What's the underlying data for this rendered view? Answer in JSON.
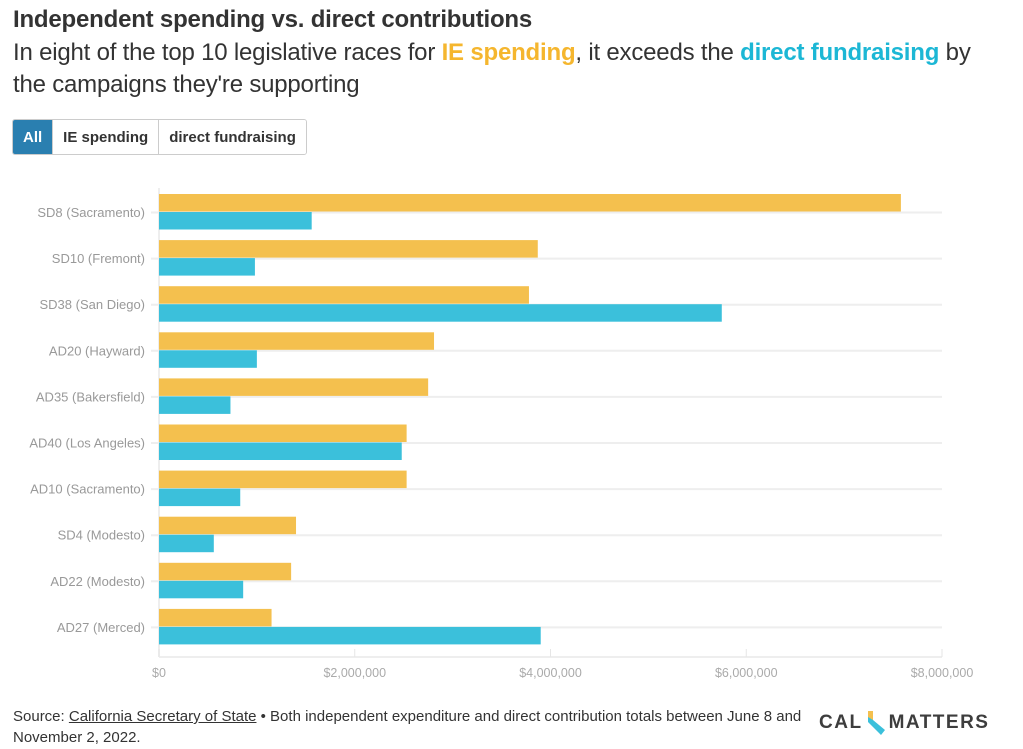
{
  "header": {
    "title": "Independent spending vs. direct contributions",
    "subtitle_parts": {
      "pre": "In eight of the top 10 legislative races for ",
      "ie": "IE spending",
      "mid": ", it exceeds the ",
      "direct": "direct fundraising",
      "post": " by the campaigns they're supporting"
    }
  },
  "toggle": {
    "options": [
      "All",
      "IE spending",
      "direct fundraising"
    ],
    "selected": "All"
  },
  "colors": {
    "ie": "#f4c04e",
    "direct": "#3bc0db",
    "ie_text": "#f5b62e",
    "direct_text": "#1cb7d5",
    "toggle_active": "#2a7fb0"
  },
  "chart_data": {
    "type": "bar",
    "orientation": "horizontal",
    "title": "Independent spending vs. direct contributions",
    "categories": [
      "SD8 (Sacramento)",
      "SD10 (Fremont)",
      "SD38 (San Diego)",
      "AD20 (Hayward)",
      "AD35 (Bakersfield)",
      "AD40 (Los Angeles)",
      "AD10 (Sacramento)",
      "SD4 (Modesto)",
      "AD22 (Modesto)",
      "AD27 (Merced)"
    ],
    "series": [
      {
        "name": "IE spending",
        "values": [
          7580000,
          3870000,
          3780000,
          2810000,
          2750000,
          2530000,
          2530000,
          1400000,
          1350000,
          1150000
        ]
      },
      {
        "name": "direct fundraising",
        "values": [
          1560000,
          980000,
          5750000,
          1000000,
          730000,
          2480000,
          830000,
          560000,
          860000,
          3900000
        ]
      }
    ],
    "xlabel": "",
    "ylabel": "",
    "xlim": [
      0,
      8000000
    ],
    "ticks": [
      0,
      2000000,
      4000000,
      6000000,
      8000000
    ],
    "tick_labels": [
      "$0",
      "$2,000,000",
      "$4,000,000",
      "$6,000,000",
      "$8,000,000"
    ],
    "grid": true,
    "legend": "none (colors explained in subtitle)"
  },
  "footer": {
    "source_prefix": "Source: ",
    "source_link": "California Secretary of State",
    "note": " • Both independent expenditure and direct contribution totals between June 8 and November 2, 2022.",
    "logo_left": "CAL",
    "logo_right": "MATTERS"
  }
}
